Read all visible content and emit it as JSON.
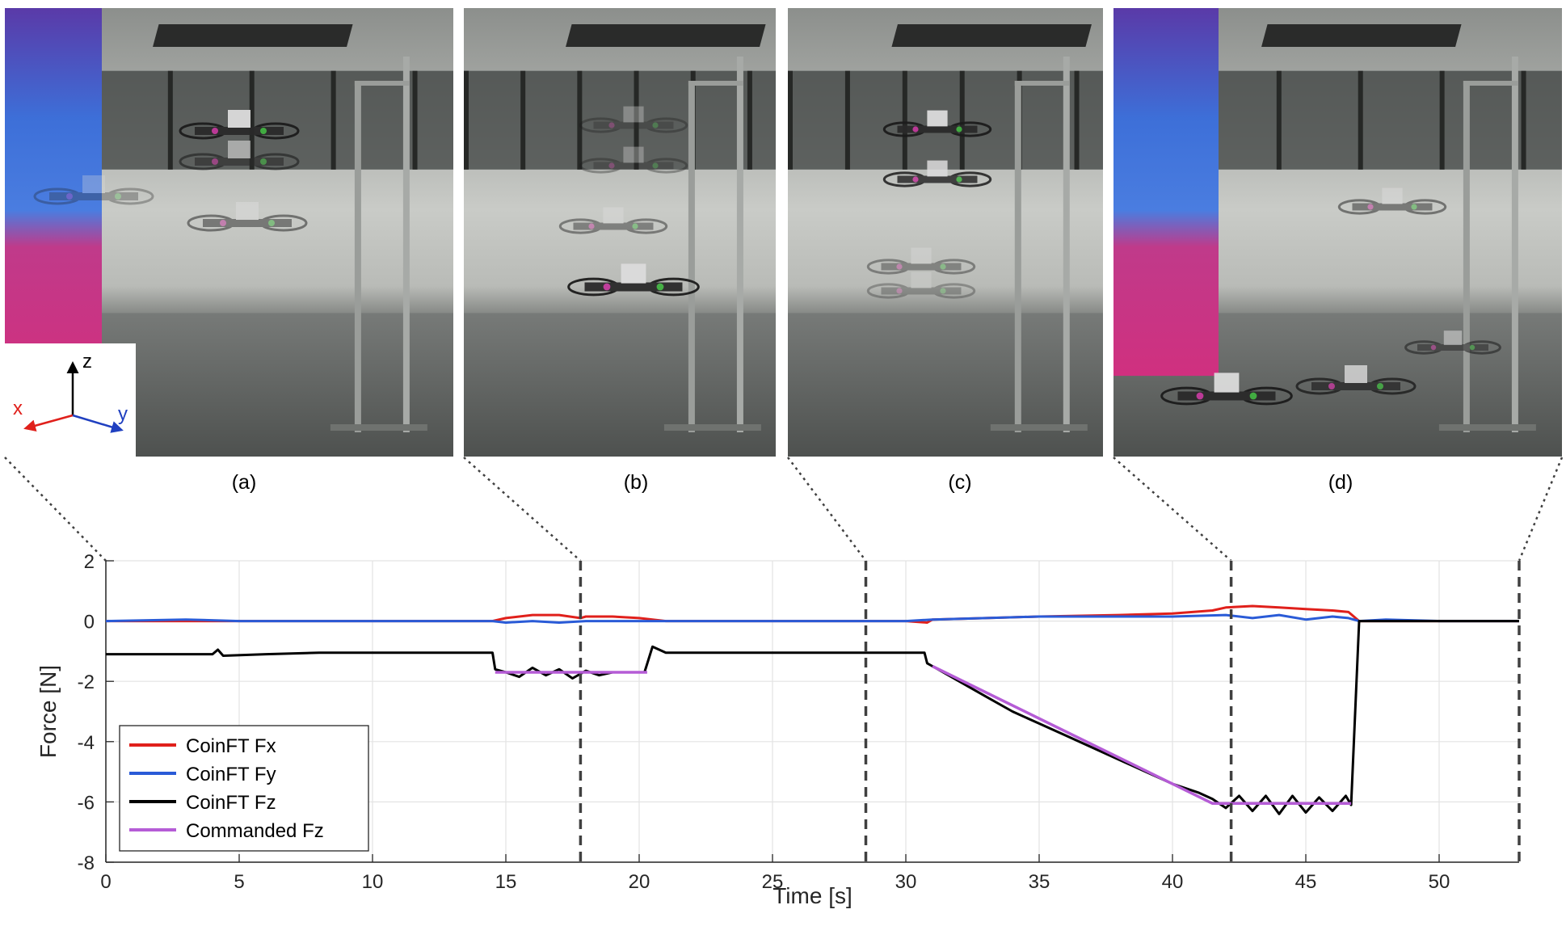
{
  "panels": [
    {
      "label": "(a)"
    },
    {
      "label": "(b)"
    },
    {
      "label": "(c)"
    },
    {
      "label": "(d)"
    }
  ],
  "axes_inset": {
    "z": "z",
    "x": "x",
    "y": "y",
    "colors": {
      "z": "#000000",
      "x": "#e0201b",
      "y": "#2040c0"
    }
  },
  "chart_data": {
    "type": "line",
    "xlabel": "Time [s]",
    "ylabel": "Force [N]",
    "xlim": [
      0,
      53
    ],
    "ylim": [
      -8,
      2
    ],
    "xticks": [
      0,
      5,
      10,
      15,
      20,
      25,
      30,
      35,
      40,
      45,
      50
    ],
    "yticks": [
      2,
      0,
      -2,
      -4,
      -6,
      -8
    ],
    "grid": true,
    "legend": "bottom-left",
    "markers": [
      17.8,
      28.5,
      42.2,
      53
    ],
    "series": [
      {
        "name": "CoinFT Fx",
        "color": "#e0201b",
        "x": [
          0,
          5,
          10,
          14.5,
          15,
          16,
          17,
          17.8,
          18,
          19,
          20,
          20.5,
          21,
          25,
          28.5,
          30,
          30.8,
          31,
          33,
          35,
          38,
          40,
          41.5,
          42,
          43,
          44,
          45,
          46,
          46.6,
          47,
          48,
          50,
          53
        ],
        "y": [
          0,
          0,
          0,
          0,
          0.1,
          0.2,
          0.2,
          0.1,
          0.15,
          0.15,
          0.1,
          0.05,
          0,
          0,
          0,
          0,
          -0.05,
          0.05,
          0.1,
          0.15,
          0.2,
          0.25,
          0.35,
          0.45,
          0.5,
          0.45,
          0.4,
          0.35,
          0.3,
          0,
          0,
          0,
          0
        ]
      },
      {
        "name": "CoinFT Fy",
        "color": "#2a5bd7",
        "x": [
          0,
          3,
          5,
          10,
          14.5,
          15,
          16,
          17,
          18,
          19,
          20,
          21,
          25,
          30,
          31,
          33,
          35,
          38,
          40,
          42,
          43,
          44,
          45,
          46,
          46.6,
          47,
          48,
          50,
          53
        ],
        "y": [
          0,
          0.05,
          0,
          0,
          0,
          -0.05,
          0,
          -0.05,
          0,
          0,
          0,
          0,
          0,
          0,
          0.05,
          0.1,
          0.15,
          0.15,
          0.15,
          0.2,
          0.1,
          0.2,
          0.05,
          0.15,
          0.1,
          0,
          0.05,
          0,
          0
        ]
      },
      {
        "name": "CoinFT Fz",
        "color": "#000000",
        "x": [
          0,
          2,
          4,
          4.2,
          4.4,
          6,
          8,
          10,
          12,
          14.5,
          14.6,
          15,
          15.5,
          16,
          16.5,
          17,
          17.5,
          18,
          18.5,
          19,
          19.5,
          20,
          20.2,
          20.5,
          21,
          25,
          28,
          30.7,
          30.8,
          31,
          32,
          33,
          34,
          35,
          36,
          37,
          38,
          39,
          40,
          41,
          41.5,
          42,
          42.5,
          43,
          43.5,
          44,
          44.5,
          45,
          45.5,
          46,
          46.5,
          46.7,
          47,
          47.5,
          48,
          50,
          53
        ],
        "y": [
          -1.1,
          -1.1,
          -1.1,
          -0.95,
          -1.15,
          -1.1,
          -1.05,
          -1.05,
          -1.05,
          -1.05,
          -1.6,
          -1.7,
          -1.85,
          -1.55,
          -1.8,
          -1.6,
          -1.9,
          -1.65,
          -1.8,
          -1.7,
          -1.7,
          -1.7,
          -1.7,
          -0.85,
          -1.05,
          -1.05,
          -1.05,
          -1.05,
          -1.4,
          -1.5,
          -2.0,
          -2.5,
          -3.0,
          -3.4,
          -3.8,
          -4.2,
          -4.6,
          -5.0,
          -5.4,
          -5.7,
          -5.9,
          -6.2,
          -5.8,
          -6.3,
          -5.8,
          -6.4,
          -5.8,
          -6.35,
          -5.85,
          -6.3,
          -5.8,
          -6.1,
          0,
          0,
          0,
          0,
          0
        ]
      },
      {
        "name": "Commanded Fz",
        "color": "#b55cd6",
        "x": [
          14.6,
          20.3,
          null,
          31,
          41.5,
          46.7
        ],
        "y": [
          -1.7,
          -1.7,
          null,
          -1.5,
          -6.05,
          -6.05
        ]
      }
    ]
  }
}
